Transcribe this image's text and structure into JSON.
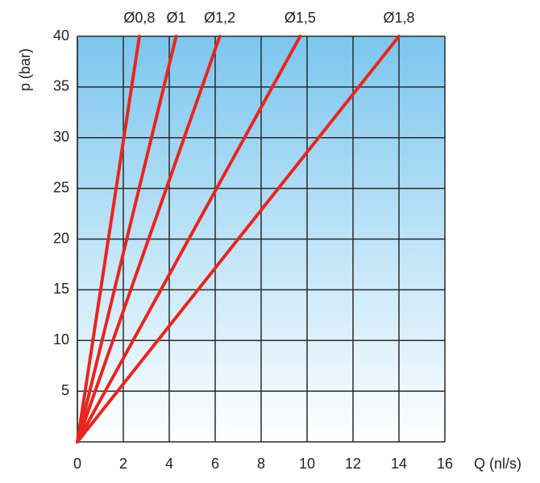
{
  "chart_data": {
    "type": "line",
    "xlabel": "Q (nl/s)",
    "ylabel": "p (bar)",
    "series": [
      {
        "name": "Ø0,8",
        "color": "#e8251f",
        "x": [
          0,
          2.7
        ],
        "values": [
          0,
          40
        ]
      },
      {
        "name": "Ø1",
        "color": "#e8251f",
        "x": [
          0,
          4.3
        ],
        "values": [
          0,
          40
        ]
      },
      {
        "name": "Ø1,2",
        "color": "#e8251f",
        "x": [
          0,
          6.2
        ],
        "values": [
          0,
          40
        ]
      },
      {
        "name": "Ø1,5",
        "color": "#e8251f",
        "x": [
          0,
          9.7
        ],
        "values": [
          0,
          40
        ]
      },
      {
        "name": "Ø1,8",
        "color": "#e8251f",
        "x": [
          0,
          14
        ],
        "values": [
          0,
          40
        ]
      }
    ],
    "xlim": [
      0,
      16
    ],
    "xticks": [
      0,
      2,
      4,
      6,
      8,
      10,
      12,
      14,
      16
    ],
    "ylim": [
      0,
      40
    ],
    "yticks": [
      5,
      10,
      15,
      20,
      25,
      30,
      35,
      40
    ],
    "grid": true
  }
}
